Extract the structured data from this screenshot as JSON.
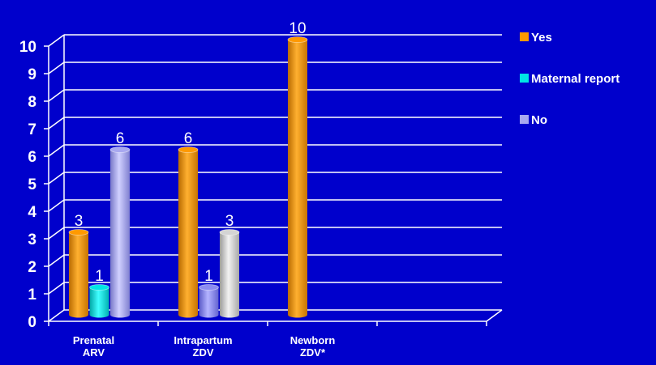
{
  "chart_data": {
    "type": "bar",
    "categories": [
      [
        "Prenatal",
        "ARV"
      ],
      [
        "Intrapartum",
        "ZDV"
      ],
      [
        "Newborn",
        "ZDV*"
      ]
    ],
    "series": [
      {
        "name": "Yes",
        "values": [
          3,
          6,
          10
        ]
      },
      {
        "name": "Maternal report",
        "values": [
          1,
          1,
          null
        ]
      },
      {
        "name": "No",
        "values": [
          6,
          3,
          null
        ]
      }
    ],
    "ylim": [
      0,
      10
    ],
    "yticks": [
      "0",
      "1",
      "2",
      "3",
      "4",
      "5",
      "6",
      "7",
      "8",
      "9",
      "10"
    ],
    "data_labels": [
      [
        "3",
        "1",
        "6"
      ],
      [
        "6",
        "1",
        "3"
      ],
      [
        "10",
        "",
        ""
      ]
    ],
    "bar_colors": [
      [
        "#FF9900",
        "#00E5E5",
        "#A8A8F0"
      ],
      [
        "#FF9900",
        "#8C8CF0",
        "#D4D4D4"
      ],
      [
        "#FF9900",
        "",
        ""
      ]
    ],
    "legend_colors": [
      "#FF9900",
      "#00E5E5",
      "#A8A8F0"
    ],
    "grid": true,
    "legend_position": "right"
  }
}
